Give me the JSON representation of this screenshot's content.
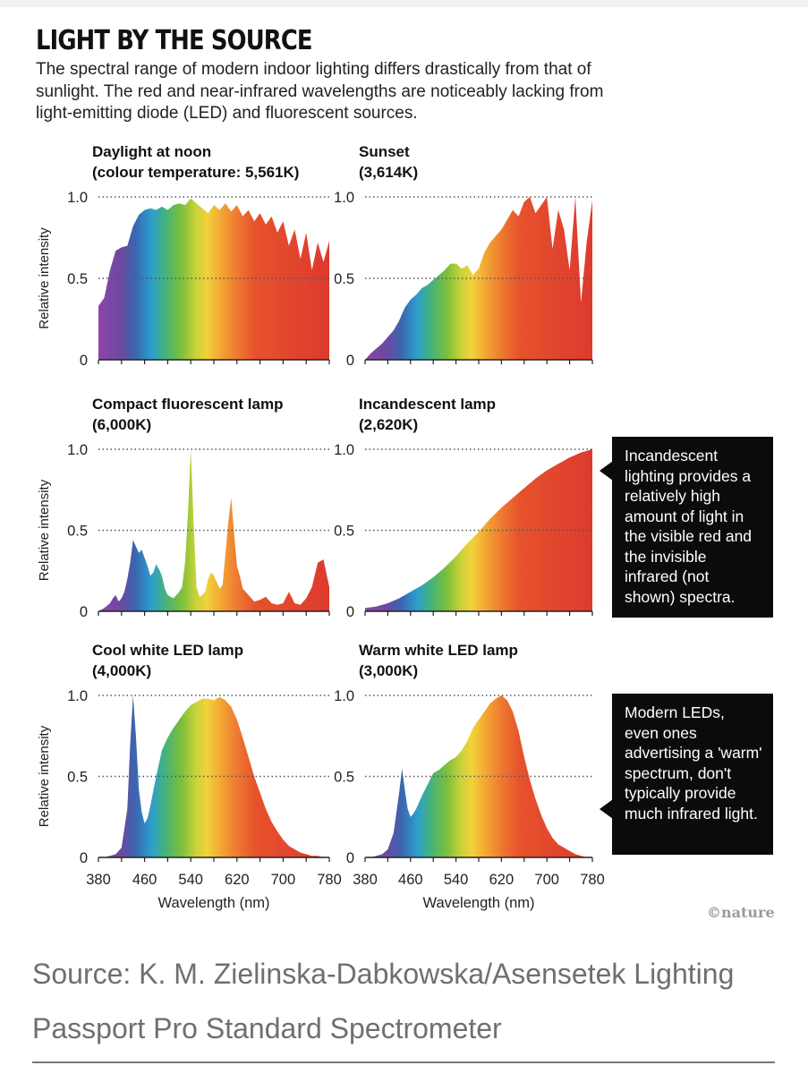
{
  "header": {
    "title": "LIGHT BY THE SOURCE",
    "subtitle": "The spectral range of modern indoor lighting differs drastically from that of sunlight. The red and near-infrared wavelengths are noticeably lacking from light-emitting diode (LED) and fluorescent sources."
  },
  "annotations": {
    "incandescent": "Incandescent lighting provides a relatively high amount of light in the visible red and the invisible infrared (not shown) spectra.",
    "led": "Modern LEDs, even ones advertising a 'warm' spectrum, don't typically provide much infrared light."
  },
  "credit": "©nature",
  "source": "Source: K. M. Zielinska-Dabkowska/Asensetek Lighting Passport Pro Standard Spectrometer",
  "chart_data": [
    {
      "type": "area",
      "title": "Daylight at noon",
      "subtitle": "(colour temperature: 5,561K)",
      "ylabel": "Relative intensity",
      "xlabel": "",
      "xlim": [
        380,
        780
      ],
      "ylim": [
        0,
        1
      ],
      "y_ticks": [
        "0",
        "0.5",
        "1.0"
      ],
      "x_ticks": [],
      "x": [
        380,
        390,
        400,
        410,
        420,
        430,
        440,
        450,
        460,
        470,
        480,
        490,
        500,
        510,
        520,
        530,
        540,
        550,
        560,
        570,
        580,
        590,
        600,
        610,
        620,
        630,
        640,
        650,
        660,
        670,
        680,
        690,
        700,
        710,
        720,
        730,
        740,
        750,
        760,
        770,
        780
      ],
      "y": [
        0.33,
        0.38,
        0.55,
        0.67,
        0.69,
        0.7,
        0.82,
        0.89,
        0.92,
        0.93,
        0.92,
        0.94,
        0.92,
        0.95,
        0.96,
        0.95,
        0.99,
        0.96,
        0.93,
        0.9,
        0.95,
        0.92,
        0.96,
        0.91,
        0.95,
        0.88,
        0.92,
        0.85,
        0.9,
        0.83,
        0.88,
        0.78,
        0.85,
        0.7,
        0.8,
        0.62,
        0.78,
        0.55,
        0.72,
        0.6,
        0.73
      ]
    },
    {
      "type": "area",
      "title": "Sunset",
      "subtitle": "(3,614K)",
      "ylabel": "",
      "xlabel": "",
      "xlim": [
        380,
        780
      ],
      "ylim": [
        0,
        1
      ],
      "y_ticks": [
        "0",
        "0.5",
        "1.0"
      ],
      "x_ticks": [],
      "x": [
        380,
        390,
        400,
        410,
        420,
        430,
        440,
        450,
        460,
        470,
        480,
        490,
        500,
        510,
        520,
        530,
        540,
        550,
        560,
        570,
        580,
        590,
        600,
        610,
        620,
        630,
        640,
        650,
        660,
        670,
        680,
        690,
        700,
        710,
        720,
        730,
        740,
        750,
        760,
        770,
        780
      ],
      "y": [
        0.0,
        0.04,
        0.07,
        0.1,
        0.14,
        0.18,
        0.24,
        0.32,
        0.37,
        0.4,
        0.44,
        0.46,
        0.49,
        0.52,
        0.55,
        0.59,
        0.59,
        0.56,
        0.58,
        0.52,
        0.56,
        0.66,
        0.72,
        0.76,
        0.8,
        0.86,
        0.92,
        0.88,
        0.97,
        1.0,
        0.9,
        0.95,
        1.0,
        0.68,
        0.92,
        0.8,
        0.55,
        1.0,
        0.35,
        0.72,
        0.98
      ]
    },
    {
      "type": "area",
      "title": "Compact fluorescent lamp",
      "subtitle": "(6,000K)",
      "ylabel": "Relative intensity",
      "xlabel": "",
      "xlim": [
        380,
        780
      ],
      "ylim": [
        0,
        1
      ],
      "y_ticks": [
        "0",
        "0.5",
        "1.0"
      ],
      "x_ticks": [],
      "x": [
        380,
        390,
        400,
        405,
        410,
        415,
        420,
        425,
        430,
        435,
        440,
        445,
        450,
        455,
        460,
        465,
        470,
        475,
        480,
        485,
        490,
        495,
        500,
        505,
        510,
        515,
        520,
        525,
        530,
        535,
        540,
        545,
        550,
        555,
        560,
        565,
        570,
        575,
        580,
        585,
        590,
        595,
        600,
        605,
        610,
        615,
        620,
        625,
        630,
        640,
        650,
        660,
        670,
        680,
        690,
        700,
        710,
        720,
        730,
        740,
        750,
        760,
        770,
        780
      ],
      "y": [
        0.0,
        0.02,
        0.05,
        0.08,
        0.1,
        0.06,
        0.08,
        0.12,
        0.2,
        0.3,
        0.44,
        0.4,
        0.36,
        0.38,
        0.33,
        0.28,
        0.22,
        0.24,
        0.29,
        0.26,
        0.22,
        0.14,
        0.1,
        0.09,
        0.08,
        0.1,
        0.12,
        0.15,
        0.3,
        0.6,
        1.0,
        0.55,
        0.15,
        0.09,
        0.1,
        0.12,
        0.2,
        0.24,
        0.22,
        0.18,
        0.14,
        0.16,
        0.35,
        0.55,
        0.7,
        0.48,
        0.28,
        0.22,
        0.14,
        0.1,
        0.06,
        0.07,
        0.09,
        0.05,
        0.04,
        0.05,
        0.12,
        0.05,
        0.04,
        0.08,
        0.15,
        0.3,
        0.32,
        0.15
      ]
    },
    {
      "type": "area",
      "title": "Incandescent lamp",
      "subtitle": "(2,620K)",
      "ylabel": "",
      "xlabel": "",
      "xlim": [
        380,
        780
      ],
      "ylim": [
        0,
        1
      ],
      "y_ticks": [
        "0",
        "0.5",
        "1.0"
      ],
      "x_ticks": [],
      "x": [
        380,
        400,
        420,
        440,
        460,
        480,
        500,
        520,
        540,
        560,
        580,
        600,
        620,
        640,
        660,
        680,
        700,
        720,
        740,
        760,
        780
      ],
      "y": [
        0.02,
        0.03,
        0.05,
        0.08,
        0.12,
        0.16,
        0.21,
        0.27,
        0.34,
        0.42,
        0.49,
        0.57,
        0.64,
        0.7,
        0.76,
        0.82,
        0.87,
        0.91,
        0.95,
        0.98,
        1.0
      ]
    },
    {
      "type": "area",
      "title": "Cool white LED lamp",
      "subtitle": "(4,000K)",
      "ylabel": "Relative intensity",
      "xlabel": "Wavelength (nm)",
      "xlim": [
        380,
        780
      ],
      "ylim": [
        0,
        1
      ],
      "y_ticks": [
        "0",
        "0.5",
        "1.0"
      ],
      "x_ticks": [
        "380",
        "460",
        "540",
        "620",
        "700",
        "780"
      ],
      "x": [
        380,
        390,
        400,
        410,
        420,
        430,
        435,
        440,
        445,
        450,
        455,
        460,
        465,
        470,
        480,
        490,
        500,
        510,
        520,
        530,
        540,
        550,
        560,
        570,
        580,
        590,
        600,
        610,
        620,
        630,
        640,
        650,
        660,
        670,
        680,
        690,
        700,
        710,
        720,
        730,
        740,
        750,
        760,
        770,
        780
      ],
      "y": [
        0.0,
        0.0,
        0.01,
        0.02,
        0.06,
        0.3,
        0.7,
        1.0,
        0.75,
        0.42,
        0.28,
        0.21,
        0.24,
        0.32,
        0.5,
        0.66,
        0.74,
        0.8,
        0.85,
        0.9,
        0.94,
        0.96,
        0.98,
        0.98,
        0.97,
        0.99,
        0.97,
        0.93,
        0.85,
        0.74,
        0.62,
        0.5,
        0.4,
        0.3,
        0.22,
        0.16,
        0.11,
        0.07,
        0.05,
        0.03,
        0.02,
        0.01,
        0.01,
        0.0,
        0.0
      ]
    },
    {
      "type": "area",
      "title": "Warm white LED lamp",
      "subtitle": "(3,000K)",
      "ylabel": "",
      "xlabel": "Wavelength (nm)",
      "xlim": [
        380,
        780
      ],
      "ylim": [
        0,
        1
      ],
      "y_ticks": [
        "0",
        "0.5",
        "1.0"
      ],
      "x_ticks": [
        "380",
        "460",
        "540",
        "620",
        "700",
        "780"
      ],
      "x": [
        380,
        390,
        400,
        410,
        420,
        430,
        440,
        445,
        450,
        455,
        460,
        465,
        470,
        480,
        490,
        500,
        510,
        520,
        530,
        540,
        550,
        560,
        570,
        580,
        590,
        600,
        610,
        620,
        630,
        640,
        650,
        660,
        670,
        680,
        690,
        700,
        710,
        720,
        730,
        740,
        750,
        760,
        770,
        780
      ],
      "y": [
        0.0,
        0.0,
        0.01,
        0.02,
        0.05,
        0.15,
        0.4,
        0.55,
        0.42,
        0.3,
        0.25,
        0.27,
        0.3,
        0.38,
        0.45,
        0.52,
        0.54,
        0.57,
        0.6,
        0.62,
        0.66,
        0.72,
        0.8,
        0.85,
        0.9,
        0.95,
        0.98,
        1.0,
        0.97,
        0.9,
        0.78,
        0.62,
        0.48,
        0.36,
        0.26,
        0.18,
        0.12,
        0.08,
        0.06,
        0.04,
        0.02,
        0.01,
        0.0,
        0.0
      ]
    }
  ]
}
